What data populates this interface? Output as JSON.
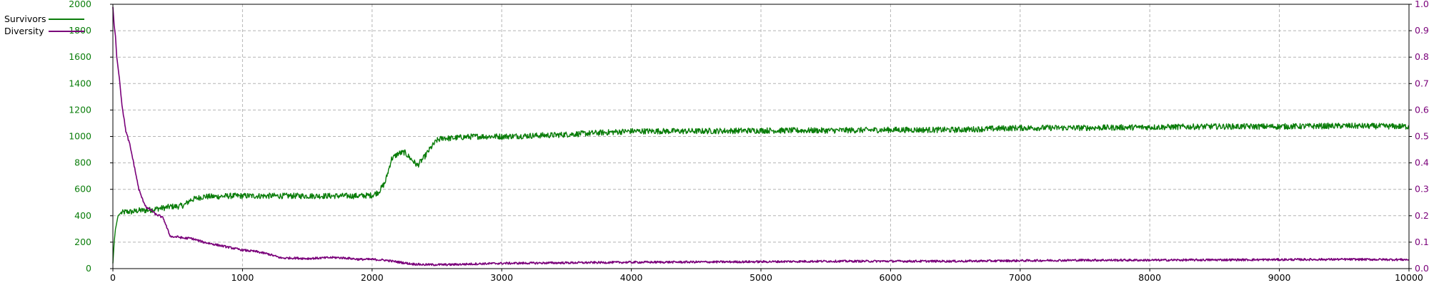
{
  "chart_data": {
    "type": "line",
    "title": "",
    "xlabel": "",
    "ylabel": "",
    "y2label": "",
    "grid": true,
    "legend_position": "top-left",
    "xlim": [
      0,
      10000
    ],
    "ylim": [
      0,
      2000
    ],
    "y2lim": [
      0,
      1.0
    ],
    "x_ticks": [
      "0",
      "1000",
      "2000",
      "3000",
      "4000",
      "5000",
      "6000",
      "7000",
      "8000",
      "9000",
      "10000"
    ],
    "y_ticks": [
      "0",
      "200",
      "400",
      "600",
      "800",
      "1000",
      "1200",
      "1400",
      "1600",
      "1800",
      "2000"
    ],
    "y2_ticks": [
      "0.00",
      "0.10",
      "0.20",
      "0.30",
      "0.40",
      "0.50",
      "0.60",
      "0.70",
      "0.80",
      "0.90",
      "1.00"
    ],
    "colors": {
      "survivors": "#0a7d0a",
      "diversity": "#7a007a",
      "grid": "#b4b4b4",
      "axis": "#000000"
    },
    "series": [
      {
        "name": "Survivors",
        "axis": "left",
        "color": "#0a7d0a",
        "x": [
          0,
          10,
          20,
          40,
          60,
          100,
          150,
          200,
          250,
          300,
          350,
          400,
          450,
          500,
          550,
          600,
          700,
          800,
          900,
          1000,
          1100,
          1200,
          1300,
          1400,
          1500,
          1600,
          1700,
          1800,
          1900,
          2000,
          2050,
          2100,
          2150,
          2200,
          2250,
          2300,
          2350,
          2400,
          2450,
          2500,
          2550,
          2600,
          2700,
          2800,
          2900,
          3000,
          3200,
          3400,
          3600,
          3800,
          4000,
          4500,
          5000,
          5500,
          6000,
          6500,
          7000,
          7500,
          8000,
          8500,
          9000,
          9500,
          10000
        ],
        "y": [
          40,
          200,
          300,
          400,
          420,
          430,
          430,
          440,
          440,
          445,
          455,
          460,
          470,
          470,
          480,
          520,
          545,
          545,
          550,
          550,
          550,
          550,
          550,
          550,
          550,
          550,
          550,
          550,
          550,
          555,
          580,
          650,
          830,
          870,
          880,
          830,
          780,
          840,
          910,
          970,
          990,
          985,
          995,
          1000,
          1000,
          1000,
          1005,
          1010,
          1020,
          1030,
          1040,
          1040,
          1045,
          1045,
          1050,
          1050,
          1065,
          1065,
          1070,
          1075,
          1075,
          1080,
          1075
        ]
      },
      {
        "name": "Diversity",
        "axis": "right",
        "color": "#7a007a",
        "x": [
          0,
          10,
          20,
          30,
          50,
          70,
          100,
          130,
          160,
          180,
          200,
          230,
          260,
          300,
          330,
          360,
          390,
          420,
          440,
          460,
          500,
          550,
          600,
          700,
          800,
          900,
          1000,
          1100,
          1200,
          1300,
          1400,
          1500,
          1600,
          1700,
          1800,
          1900,
          2000,
          2100,
          2200,
          2300,
          2400,
          2600,
          2800,
          3000,
          3500,
          4000,
          4500,
          5000,
          5500,
          6000,
          6500,
          7000,
          7500,
          8000,
          8500,
          9000,
          9500,
          10000
        ],
        "y": [
          0.99,
          0.92,
          0.88,
          0.8,
          0.72,
          0.62,
          0.52,
          0.47,
          0.4,
          0.35,
          0.3,
          0.26,
          0.23,
          0.22,
          0.205,
          0.2,
          0.19,
          0.15,
          0.125,
          0.12,
          0.12,
          0.115,
          0.115,
          0.1,
          0.09,
          0.08,
          0.07,
          0.065,
          0.055,
          0.04,
          0.04,
          0.038,
          0.04,
          0.042,
          0.04,
          0.035,
          0.035,
          0.032,
          0.025,
          0.018,
          0.015,
          0.015,
          0.018,
          0.02,
          0.022,
          0.024,
          0.025,
          0.026,
          0.028,
          0.028,
          0.028,
          0.03,
          0.032,
          0.032,
          0.033,
          0.034,
          0.035,
          0.034
        ]
      }
    ]
  }
}
